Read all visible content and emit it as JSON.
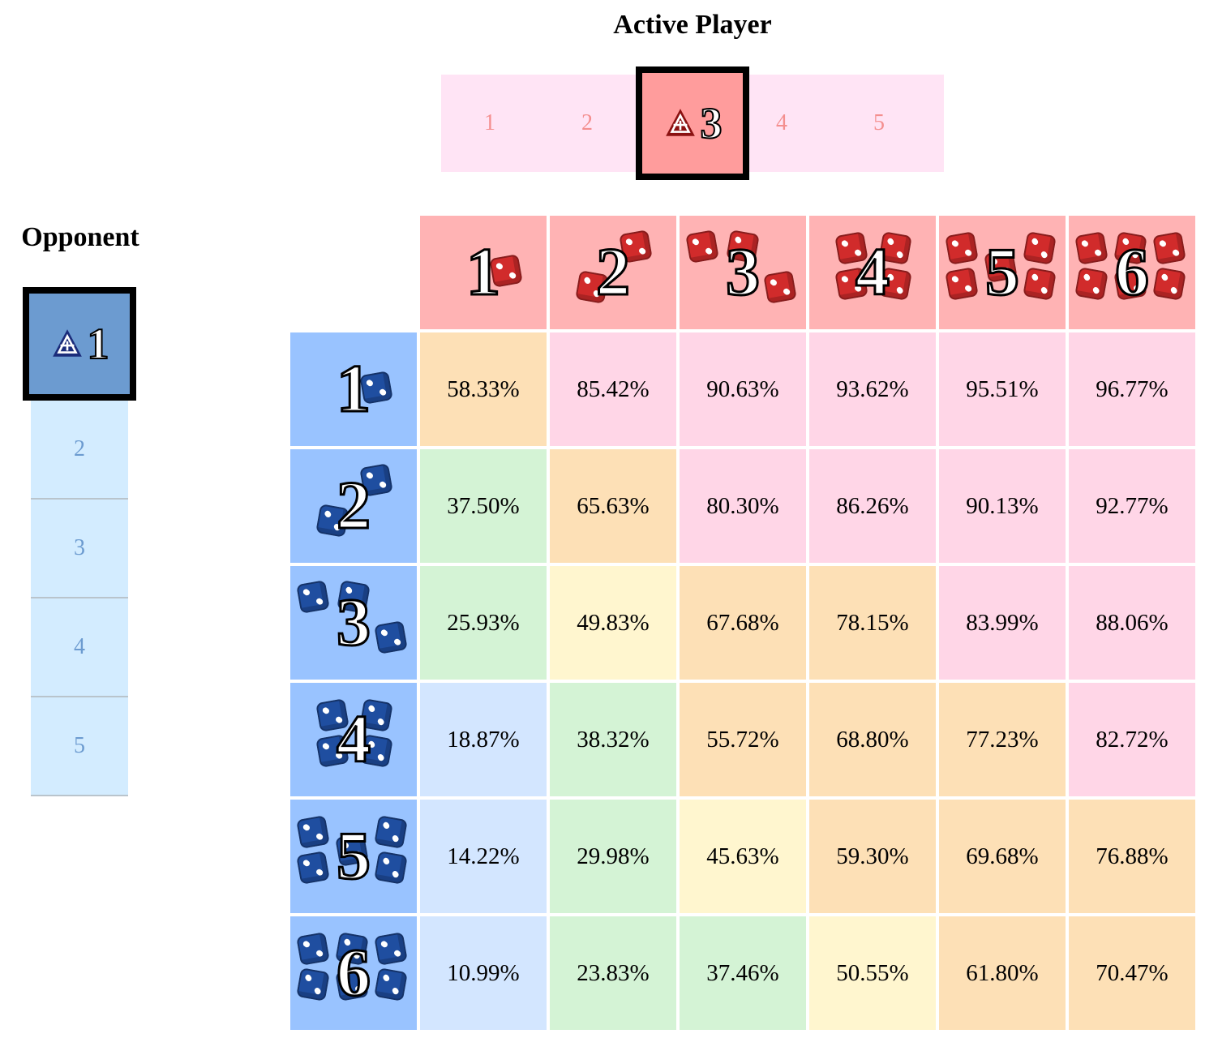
{
  "active_player": {
    "title": "Active Player",
    "options": [
      "1",
      "2",
      "3",
      "4",
      "5"
    ],
    "selected_index": 2,
    "icon": "warhammer-faction-icon"
  },
  "opponent": {
    "title": "Opponent",
    "options": [
      "1",
      "2",
      "3",
      "4",
      "5"
    ],
    "selected_index": 0,
    "icon": "warhammer-faction-icon"
  },
  "colors": {
    "attacker_header": "#ffb3b4",
    "defender_header": "#99c3ff",
    "very_high": "#ffd6e7",
    "high": "#fde0b6",
    "medium": "#fff6cf",
    "low": "#d4f3d5",
    "very_low": "#d3e6ff"
  },
  "grid": {
    "columns": [
      "1",
      "2",
      "3",
      "4",
      "5",
      "6"
    ],
    "rows": [
      "1",
      "2",
      "3",
      "4",
      "5",
      "6"
    ],
    "values": [
      [
        "58.33%",
        "85.42%",
        "90.63%",
        "93.62%",
        "95.51%",
        "96.77%"
      ],
      [
        "37.50%",
        "65.63%",
        "80.30%",
        "86.26%",
        "90.13%",
        "92.77%"
      ],
      [
        "25.93%",
        "49.83%",
        "67.68%",
        "78.15%",
        "83.99%",
        "88.06%"
      ],
      [
        "18.87%",
        "38.32%",
        "55.72%",
        "68.80%",
        "77.23%",
        "82.72%"
      ],
      [
        "14.22%",
        "29.98%",
        "45.63%",
        "59.30%",
        "69.68%",
        "76.88%"
      ],
      [
        "10.99%",
        "23.83%",
        "37.46%",
        "50.55%",
        "61.80%",
        "70.47%"
      ]
    ]
  }
}
